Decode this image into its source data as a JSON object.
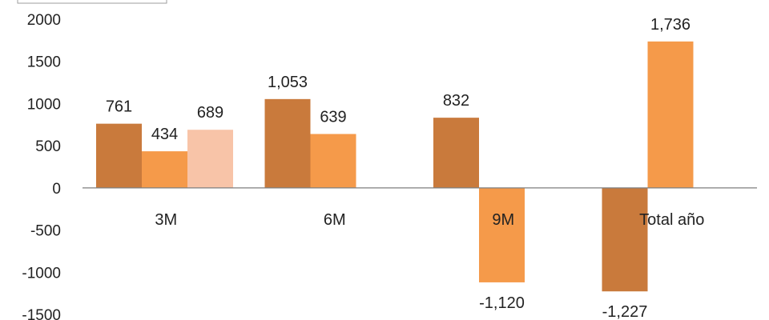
{
  "chart_data": {
    "type": "bar",
    "categories": [
      "3M",
      "6M",
      "9M",
      "Total año"
    ],
    "series": [
      {
        "color": "#c97a3c",
        "values": [
          761,
          1053,
          832,
          -1227
        ],
        "labels": [
          "761",
          "1,053",
          "832",
          "-1,227"
        ]
      },
      {
        "color": "#f59a4a",
        "values": [
          434,
          639,
          -1120,
          1736
        ],
        "labels": [
          "434",
          "639",
          "-1,120",
          "1,736"
        ]
      },
      {
        "color": "#f8c4a8",
        "values": [
          689,
          null,
          null,
          null
        ],
        "labels": [
          "689",
          "",
          "",
          ""
        ]
      }
    ],
    "ylim": [
      -1500,
      2000
    ],
    "yticks": [
      2000,
      1500,
      1000,
      500,
      0,
      -500,
      -1000,
      -1500
    ],
    "title": "",
    "xlabel": "",
    "ylabel": "",
    "grid": false,
    "legend": "none"
  }
}
